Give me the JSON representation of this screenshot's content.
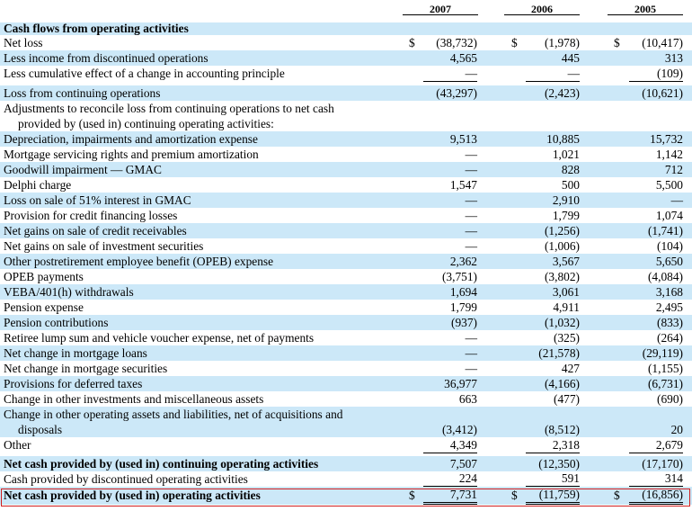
{
  "columns": [
    "2007",
    "2006",
    "2005"
  ],
  "rows": [
    {
      "label": "Cash flows from operating activities",
      "bold": true,
      "values": [
        "",
        "",
        ""
      ]
    },
    {
      "label": "Net loss",
      "currency": true,
      "values": [
        "(38,732)",
        "(1,978)",
        "(10,417)"
      ]
    },
    {
      "label": "Less income from discontinued operations",
      "values": [
        "4,565",
        "445",
        "313"
      ]
    },
    {
      "label": "Less cumulative effect of a change in accounting principle",
      "values": [
        "—",
        "—",
        "(109)"
      ],
      "underline": true
    },
    {
      "label": "Loss from continuing operations",
      "values": [
        "(43,297)",
        "(2,423)",
        "(10,621)"
      ]
    },
    {
      "label": "Adjustments to reconcile loss from continuing operations to net cash",
      "label2": "provided by (used in) continuing operating activities:",
      "values": [
        "",
        "",
        ""
      ]
    },
    {
      "label": "Depreciation, impairments and amortization expense",
      "values": [
        "9,513",
        "10,885",
        "15,732"
      ]
    },
    {
      "label": "Mortgage servicing rights and premium amortization",
      "values": [
        "—",
        "1,021",
        "1,142"
      ]
    },
    {
      "label": "Goodwill impairment — GMAC",
      "values": [
        "—",
        "828",
        "712"
      ]
    },
    {
      "label": "Delphi charge",
      "values": [
        "1,547",
        "500",
        "5,500"
      ]
    },
    {
      "label": "Loss on sale of 51% interest in GMAC",
      "values": [
        "—",
        "2,910",
        "—"
      ]
    },
    {
      "label": "Provision for credit financing losses",
      "values": [
        "—",
        "1,799",
        "1,074"
      ]
    },
    {
      "label": "Net gains on sale of credit receivables",
      "values": [
        "—",
        "(1,256)",
        "(1,741)"
      ]
    },
    {
      "label": "Net gains on sale of investment securities",
      "values": [
        "—",
        "(1,006)",
        "(104)"
      ]
    },
    {
      "label": "Other postretirement employee benefit (OPEB) expense",
      "values": [
        "2,362",
        "3,567",
        "5,650"
      ]
    },
    {
      "label": "OPEB payments",
      "values": [
        "(3,751)",
        "(3,802)",
        "(4,084)"
      ]
    },
    {
      "label": "VEBA/401(h) withdrawals",
      "values": [
        "1,694",
        "3,061",
        "3,168"
      ]
    },
    {
      "label": "Pension expense",
      "values": [
        "1,799",
        "4,911",
        "2,495"
      ]
    },
    {
      "label": "Pension contributions",
      "values": [
        "(937)",
        "(1,032)",
        "(833)"
      ]
    },
    {
      "label": "Retiree lump sum and vehicle voucher expense, net of payments",
      "values": [
        "—",
        "(325)",
        "(264)"
      ]
    },
    {
      "label": "Net change in mortgage loans",
      "values": [
        "—",
        "(21,578)",
        "(29,119)"
      ]
    },
    {
      "label": "Net change in mortgage securities",
      "values": [
        "—",
        "427",
        "(1,155)"
      ]
    },
    {
      "label": "Provisions for deferred taxes",
      "values": [
        "36,977",
        "(4,166)",
        "(6,731)"
      ]
    },
    {
      "label": "Change in other investments and miscellaneous assets",
      "values": [
        "663",
        "(477)",
        "(690)"
      ]
    },
    {
      "label": "Change in other operating assets and liabilities, net of acquisitions and",
      "label2": "disposals",
      "values": [
        "(3,412)",
        "(8,512)",
        "20"
      ]
    },
    {
      "label": "Other",
      "values": [
        "4,349",
        "2,318",
        "2,679"
      ],
      "underline": true
    },
    {
      "label": "Net cash provided by (used in) continuing operating activities",
      "bold": true,
      "values": [
        "7,507",
        "(12,350)",
        "(17,170)"
      ]
    },
    {
      "label": "Cash provided by discontinued operating activities",
      "values": [
        "224",
        "591",
        "314"
      ],
      "underline": true
    },
    {
      "label": "Net cash provided by (used in) operating activities",
      "bold": true,
      "currency": true,
      "values": [
        "7,731",
        "(11,759)",
        "(16,856)"
      ],
      "double_underline": true
    }
  ],
  "currency_symbol": "$",
  "colors": {
    "band": "#cce8f8",
    "highlight_border": "#d02020"
  }
}
